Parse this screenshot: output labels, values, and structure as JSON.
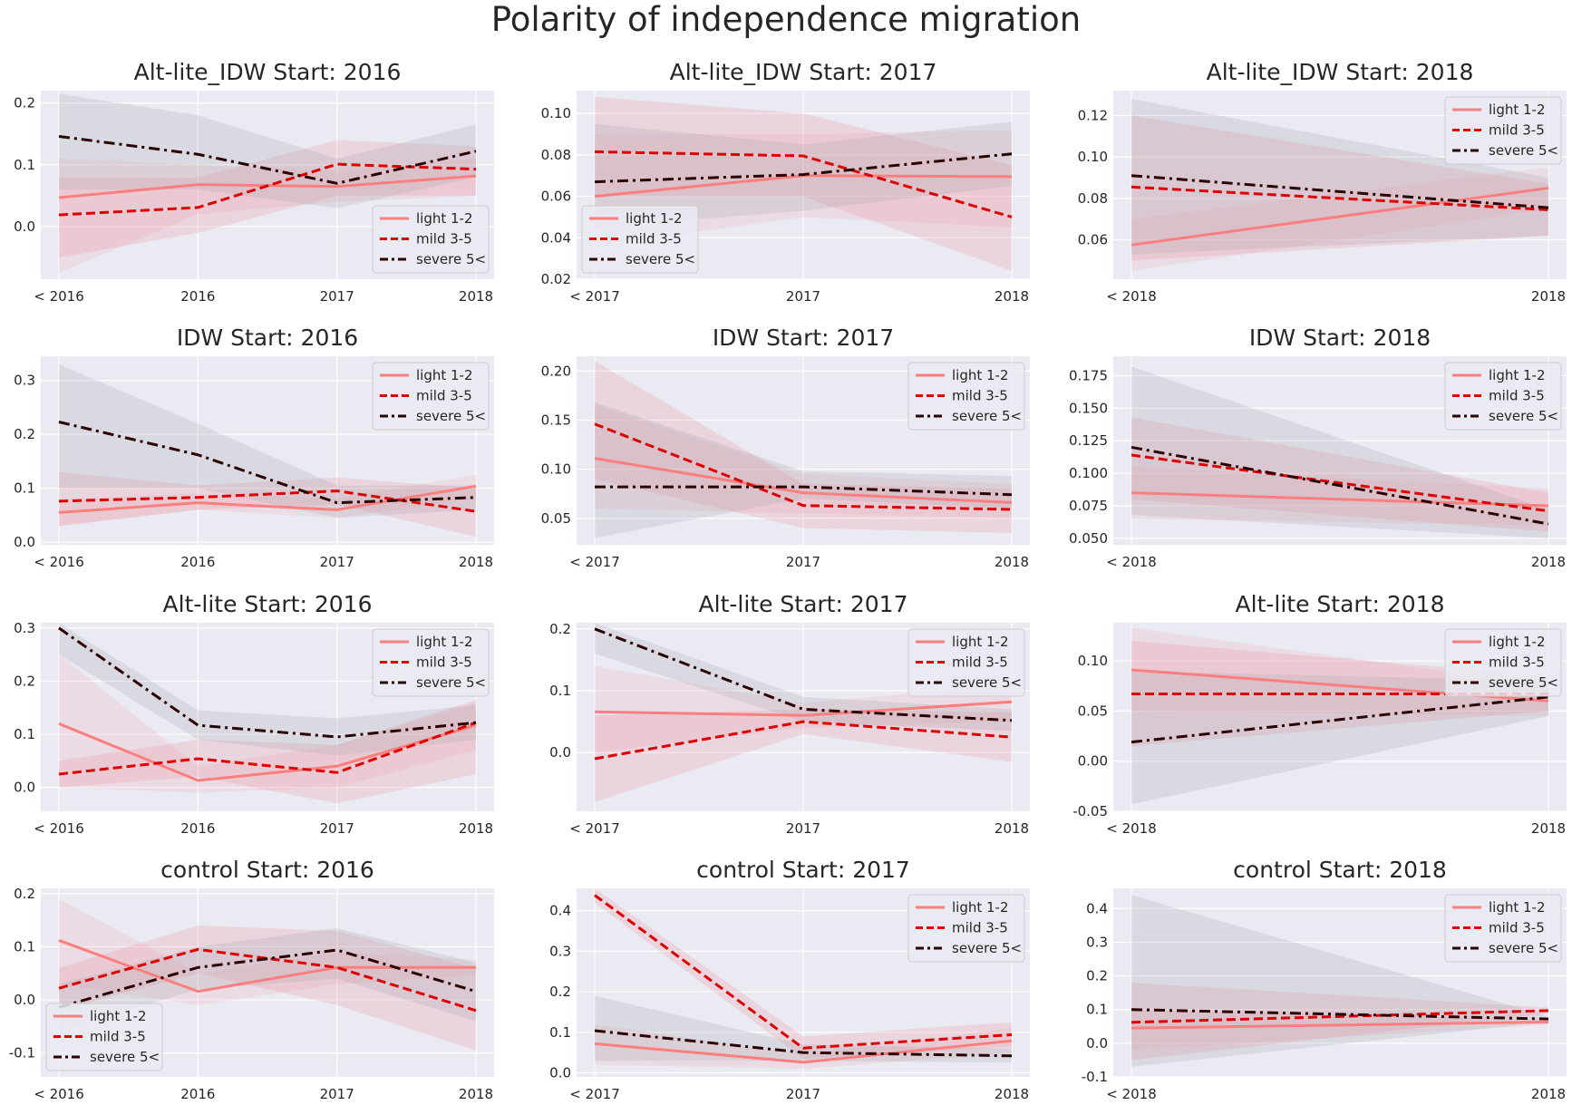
{
  "title": "Polarity of independence migration",
  "colors": {
    "panel_bg": "#eaeaf2",
    "grid": "#ffffff",
    "light": "#fa7f7f",
    "mild": "#dc0000",
    "severe": "#2a0000",
    "band_light": "#f2a9b4",
    "band_mild": "#ec8a98",
    "band_severe": "#a0a0a8"
  },
  "series_styles": [
    {
      "key": "light",
      "label": "light 1-2",
      "dash": "none"
    },
    {
      "key": "mild",
      "label": "mild 3-5",
      "dash": "dashed"
    },
    {
      "key": "severe",
      "label": "severe 5<",
      "dash": "dashdot"
    }
  ],
  "chart_data": [
    {
      "type": "line",
      "title": "Alt-lite_IDW Start: 2016",
      "categories": [
        "< 2016",
        "2016",
        "2017",
        "2018"
      ],
      "ylim": [
        -0.085,
        0.22
      ],
      "yticks": [
        0.0,
        0.1,
        0.2
      ],
      "tick_decimals": 1,
      "legend": "lower-right",
      "series": [
        {
          "name": "light 1-2",
          "values": [
            0.047,
            0.068,
            0.065,
            0.082
          ],
          "lower": [
            -0.075,
            0.02,
            0.04,
            0.05
          ],
          "upper": [
            0.11,
            0.1,
            0.09,
            0.11
          ]
        },
        {
          "name": "mild 3-5",
          "values": [
            0.019,
            0.031,
            0.101,
            0.093
          ],
          "lower": [
            -0.05,
            -0.01,
            0.05,
            0.05
          ],
          "upper": [
            0.08,
            0.08,
            0.14,
            0.13
          ]
        },
        {
          "name": "severe 5<",
          "values": [
            0.146,
            0.117,
            0.07,
            0.122
          ],
          "lower": [
            0.06,
            0.06,
            0.03,
            0.08
          ],
          "upper": [
            0.215,
            0.18,
            0.11,
            0.165
          ]
        }
      ]
    },
    {
      "type": "line",
      "title": "Alt-lite_IDW Start: 2017",
      "categories": [
        "< 2017",
        "2017",
        "2018"
      ],
      "ylim": [
        0.02,
        0.111
      ],
      "yticks": [
        0.02,
        0.04,
        0.06,
        0.08,
        0.1
      ],
      "tick_decimals": 2,
      "legend": "lower-left",
      "series": [
        {
          "name": "light 1-2",
          "values": [
            0.06,
            0.07,
            0.0695
          ],
          "lower": [
            0.036,
            0.05,
            0.045
          ],
          "upper": [
            0.09,
            0.09,
            0.092
          ]
        },
        {
          "name": "mild 3-5",
          "values": [
            0.0815,
            0.0795,
            0.05
          ],
          "lower": [
            0.06,
            0.06,
            0.024
          ],
          "upper": [
            0.108,
            0.1,
            0.075
          ]
        },
        {
          "name": "severe 5<",
          "values": [
            0.067,
            0.0705,
            0.0805
          ],
          "lower": [
            0.045,
            0.053,
            0.065
          ],
          "upper": [
            0.095,
            0.085,
            0.096
          ]
        }
      ]
    },
    {
      "type": "line",
      "title": "Alt-lite_IDW Start: 2018",
      "categories": [
        "< 2018",
        "2018"
      ],
      "ylim": [
        0.041,
        0.132
      ],
      "yticks": [
        0.06,
        0.08,
        0.1,
        0.12
      ],
      "tick_decimals": 2,
      "legend": "upper-right",
      "series": [
        {
          "name": "light 1-2",
          "values": [
            0.0575,
            0.085
          ],
          "lower": [
            0.045,
            0.075
          ],
          "upper": [
            0.07,
            0.095
          ]
        },
        {
          "name": "mild 3-5",
          "values": [
            0.0855,
            0.0745
          ],
          "lower": [
            0.05,
            0.062
          ],
          "upper": [
            0.12,
            0.087
          ]
        },
        {
          "name": "severe 5<",
          "values": [
            0.091,
            0.0755
          ],
          "lower": [
            0.053,
            0.062
          ],
          "upper": [
            0.128,
            0.09
          ]
        }
      ]
    },
    {
      "type": "line",
      "title": "IDW Start: 2016",
      "categories": [
        "< 2016",
        "2016",
        "2017",
        "2018"
      ],
      "ylim": [
        -0.005,
        0.345
      ],
      "yticks": [
        0.0,
        0.1,
        0.2,
        0.3
      ],
      "tick_decimals": 1,
      "legend": "upper-right",
      "series": [
        {
          "name": "light 1-2",
          "values": [
            0.055,
            0.073,
            0.06,
            0.104
          ],
          "lower": [
            0.03,
            0.06,
            0.045,
            0.08
          ],
          "upper": [
            0.08,
            0.09,
            0.08,
            0.125
          ]
        },
        {
          "name": "mild 3-5",
          "values": [
            0.076,
            0.083,
            0.095,
            0.057
          ],
          "lower": [
            0.03,
            0.06,
            0.07,
            0.01
          ],
          "upper": [
            0.13,
            0.105,
            0.12,
            0.1
          ]
        },
        {
          "name": "severe 5<",
          "values": [
            0.223,
            0.162,
            0.073,
            0.083
          ],
          "lower": [
            0.1,
            0.1,
            0.045,
            0.06
          ],
          "upper": [
            0.33,
            0.22,
            0.105,
            0.105
          ]
        }
      ]
    },
    {
      "type": "line",
      "title": "IDW Start: 2017",
      "categories": [
        "< 2017",
        "2017",
        "2018"
      ],
      "ylim": [
        0.023,
        0.215
      ],
      "yticks": [
        0.05,
        0.1,
        0.15,
        0.2
      ],
      "tick_decimals": 2,
      "legend": "upper-right",
      "series": [
        {
          "name": "light 1-2",
          "values": [
            0.111,
            0.076,
            0.066
          ],
          "lower": [
            0.06,
            0.055,
            0.05
          ],
          "upper": [
            0.165,
            0.095,
            0.085
          ]
        },
        {
          "name": "mild 3-5",
          "values": [
            0.146,
            0.063,
            0.059
          ],
          "lower": [
            0.09,
            0.04,
            0.035
          ],
          "upper": [
            0.21,
            0.085,
            0.08
          ]
        },
        {
          "name": "severe 5<",
          "values": [
            0.082,
            0.082,
            0.074
          ],
          "lower": [
            0.03,
            0.07,
            0.06
          ],
          "upper": [
            0.168,
            0.098,
            0.093
          ]
        }
      ]
    },
    {
      "type": "line",
      "title": "IDW Start: 2018",
      "categories": [
        "< 2018",
        "2018"
      ],
      "ylim": [
        0.045,
        0.19
      ],
      "yticks": [
        0.05,
        0.075,
        0.1,
        0.125,
        0.15,
        0.175
      ],
      "tick_decimals": 3,
      "legend": "upper-right",
      "series": [
        {
          "name": "light 1-2",
          "values": [
            0.085,
            0.075
          ],
          "lower": [
            0.065,
            0.06
          ],
          "upper": [
            0.105,
            0.088
          ]
        },
        {
          "name": "mild 3-5",
          "values": [
            0.114,
            0.071
          ],
          "lower": [
            0.08,
            0.055
          ],
          "upper": [
            0.143,
            0.085
          ]
        },
        {
          "name": "severe 5<",
          "values": [
            0.12,
            0.061
          ],
          "lower": [
            0.068,
            0.05
          ],
          "upper": [
            0.182,
            0.072
          ]
        }
      ]
    },
    {
      "type": "line",
      "title": "Alt-lite Start: 2016",
      "categories": [
        "< 2016",
        "2016",
        "2017",
        "2018"
      ],
      "ylim": [
        -0.045,
        0.31
      ],
      "yticks": [
        0.0,
        0.1,
        0.2,
        0.3
      ],
      "tick_decimals": 1,
      "legend": "upper-right",
      "series": [
        {
          "name": "light 1-2",
          "values": [
            0.12,
            0.013,
            0.04,
            0.117
          ],
          "lower": [
            0.0,
            -0.01,
            0.0,
            0.07
          ],
          "upper": [
            0.25,
            0.04,
            0.08,
            0.16
          ]
        },
        {
          "name": "mild 3-5",
          "values": [
            0.025,
            0.054,
            0.028,
            0.122
          ],
          "lower": [
            0.0,
            0.02,
            -0.03,
            0.025
          ],
          "upper": [
            0.05,
            0.09,
            0.08,
            0.165
          ]
        },
        {
          "name": "severe 5<",
          "values": [
            0.3,
            0.117,
            0.095,
            0.122
          ],
          "lower": [
            0.25,
            0.09,
            0.06,
            0.09
          ],
          "upper": [
            0.31,
            0.145,
            0.13,
            0.155
          ]
        }
      ]
    },
    {
      "type": "line",
      "title": "Alt-lite Start: 2017",
      "categories": [
        "< 2017",
        "2017",
        "2018"
      ],
      "ylim": [
        -0.095,
        0.21
      ],
      "yticks": [
        0.0,
        0.1,
        0.2
      ],
      "tick_decimals": 1,
      "legend": "upper-right",
      "series": [
        {
          "name": "light 1-2",
          "values": [
            0.066,
            0.06,
            0.082
          ],
          "lower": [
            0.0,
            0.04,
            0.05
          ],
          "upper": [
            0.14,
            0.08,
            0.11
          ]
        },
        {
          "name": "mild 3-5",
          "values": [
            -0.01,
            0.05,
            0.025
          ],
          "lower": [
            -0.08,
            0.03,
            -0.015
          ],
          "upper": [
            0.06,
            0.07,
            0.065
          ]
        },
        {
          "name": "severe 5<",
          "values": [
            0.2,
            0.07,
            0.052
          ],
          "lower": [
            0.16,
            0.05,
            0.035
          ],
          "upper": [
            0.21,
            0.09,
            0.07
          ]
        }
      ]
    },
    {
      "type": "line",
      "title": "Alt-lite Start: 2018",
      "categories": [
        "< 2018",
        "2018"
      ],
      "ylim": [
        -0.05,
        0.138
      ],
      "yticks": [
        -0.05,
        0.0,
        0.05,
        0.1
      ],
      "tick_decimals": 2,
      "legend": "upper-right",
      "series": [
        {
          "name": "light 1-2",
          "values": [
            0.091,
            0.06
          ],
          "lower": [
            0.05,
            0.045
          ],
          "upper": [
            0.133,
            0.075
          ]
        },
        {
          "name": "mild 3-5",
          "values": [
            0.067,
            0.067
          ],
          "lower": [
            0.015,
            0.05
          ],
          "upper": [
            0.12,
            0.085
          ]
        },
        {
          "name": "severe 5<",
          "values": [
            0.019,
            0.064
          ],
          "lower": [
            -0.043,
            0.045
          ],
          "upper": [
            0.09,
            0.08
          ]
        }
      ]
    },
    {
      "type": "line",
      "title": "control Start: 2016",
      "categories": [
        "< 2016",
        "2016",
        "2017",
        "2018"
      ],
      "ylim": [
        -0.145,
        0.21
      ],
      "yticks": [
        -0.1,
        0.0,
        0.1,
        0.2
      ],
      "tick_decimals": 1,
      "legend": "lower-left",
      "series": [
        {
          "name": "light 1-2",
          "values": [
            0.112,
            0.016,
            0.061,
            0.061
          ],
          "lower": [
            0.03,
            -0.01,
            0.03,
            0.045
          ],
          "upper": [
            0.19,
            0.05,
            0.09,
            0.075
          ]
        },
        {
          "name": "mild 3-5",
          "values": [
            0.022,
            0.095,
            0.061,
            -0.02
          ],
          "lower": [
            -0.02,
            0.05,
            -0.01,
            -0.095
          ],
          "upper": [
            0.06,
            0.14,
            0.13,
            0.06
          ]
        },
        {
          "name": "severe 5<",
          "values": [
            -0.014,
            0.061,
            0.094,
            0.016
          ],
          "lower": [
            -0.06,
            0.02,
            0.04,
            -0.04
          ],
          "upper": [
            0.03,
            0.1,
            0.135,
            0.07
          ]
        }
      ]
    },
    {
      "type": "line",
      "title": "control Start: 2017",
      "categories": [
        "< 2017",
        "2017",
        "2018"
      ],
      "ylim": [
        -0.01,
        0.455
      ],
      "yticks": [
        0.0,
        0.1,
        0.2,
        0.3,
        0.4
      ],
      "tick_decimals": 1,
      "legend": "upper-right",
      "series": [
        {
          "name": "light 1-2",
          "values": [
            0.072,
            0.026,
            0.079
          ],
          "lower": [
            0.02,
            0.01,
            0.05
          ],
          "upper": [
            0.12,
            0.045,
            0.11
          ]
        },
        {
          "name": "mild 3-5",
          "values": [
            0.438,
            0.061,
            0.094
          ],
          "lower": [
            0.42,
            0.035,
            0.065
          ],
          "upper": [
            0.455,
            0.09,
            0.125
          ]
        },
        {
          "name": "severe 5<",
          "values": [
            0.104,
            0.05,
            0.042
          ],
          "lower": [
            0.03,
            0.03,
            0.025
          ],
          "upper": [
            0.19,
            0.07,
            0.06
          ]
        }
      ]
    },
    {
      "type": "line",
      "title": "control Start: 2018",
      "categories": [
        "< 2018",
        "2018"
      ],
      "ylim": [
        -0.1,
        0.46
      ],
      "yticks": [
        -0.1,
        0.0,
        0.1,
        0.2,
        0.3,
        0.4
      ],
      "tick_decimals": 1,
      "legend": "upper-right",
      "series": [
        {
          "name": "light 1-2",
          "values": [
            0.045,
            0.063
          ],
          "lower": [
            -0.02,
            0.055
          ],
          "upper": [
            0.1,
            0.072
          ]
        },
        {
          "name": "mild 3-5",
          "values": [
            0.062,
            0.097
          ],
          "lower": [
            -0.05,
            0.088
          ],
          "upper": [
            0.18,
            0.106
          ]
        },
        {
          "name": "severe 5<",
          "values": [
            0.1,
            0.072
          ],
          "lower": [
            -0.07,
            0.064
          ],
          "upper": [
            0.44,
            0.08
          ]
        }
      ]
    }
  ]
}
